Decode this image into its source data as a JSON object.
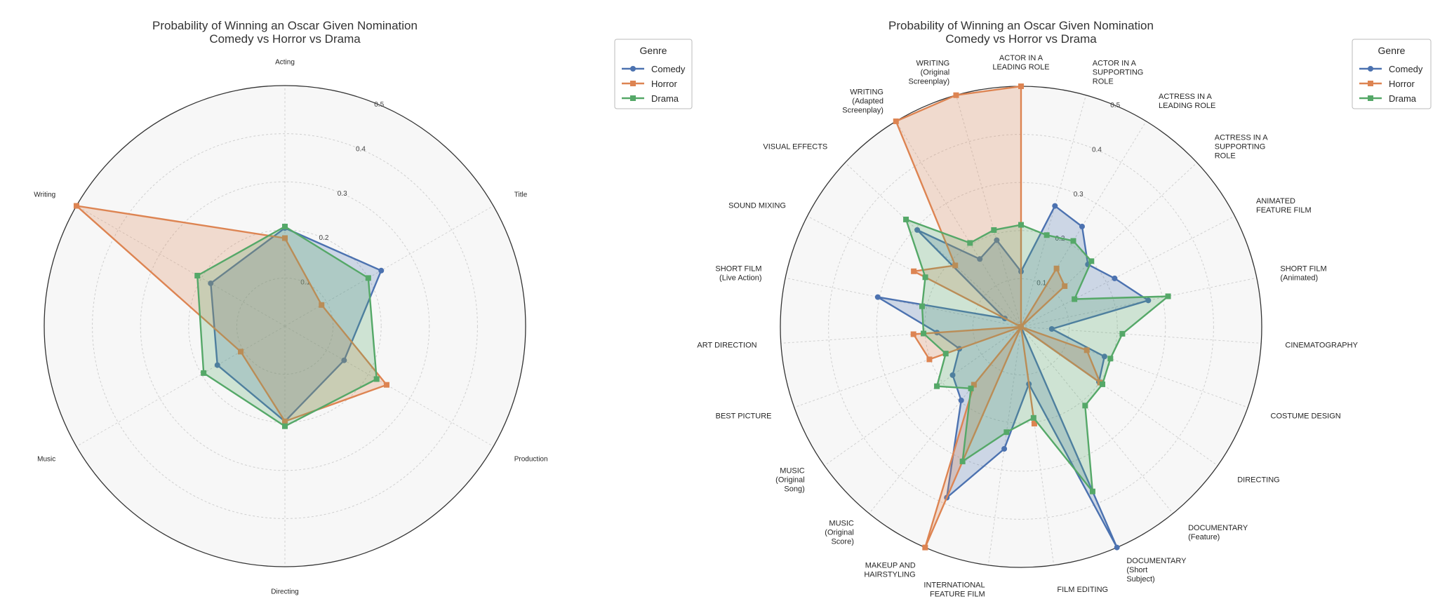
{
  "chart_data": [
    {
      "type": "radar",
      "title": [
        "Probability of Winning an Oscar Given Nomination",
        "Comedy vs Horror vs Drama"
      ],
      "categories": [
        [
          "Acting"
        ],
        [
          "Title"
        ],
        [
          "Production"
        ],
        [
          "Directing"
        ],
        [
          "Music"
        ],
        [
          "Writing"
        ]
      ],
      "rlim": [
        0,
        0.5
      ],
      "rticks": [
        "0.1",
        "0.2",
        "0.3",
        "0.4",
        "0.5"
      ],
      "grid": true,
      "legend": {
        "title": "Genre",
        "position": "upper-right"
      },
      "series": [
        {
          "name": "Comedy",
          "color": "#4c72b0",
          "marker": "circle",
          "values": [
            0.204,
            0.231,
            0.142,
            0.198,
            0.162,
            0.178
          ]
        },
        {
          "name": "Horror",
          "color": "#dd8452",
          "marker": "square",
          "values": [
            0.183,
            0.088,
            0.244,
            0.198,
            0.106,
            0.5
          ]
        },
        {
          "name": "Drama",
          "color": "#55a868",
          "marker": "square",
          "values": [
            0.207,
            0.2,
            0.22,
            0.208,
            0.195,
            0.21
          ]
        }
      ]
    },
    {
      "type": "radar",
      "title": [
        "Probability of Winning an Oscar Given Nomination",
        "Comedy vs Horror vs Drama"
      ],
      "categories": [
        [
          "ACTOR IN A",
          "LEADING ROLE"
        ],
        [
          "ACTOR IN A",
          "SUPPORTING",
          "ROLE"
        ],
        [
          "ACTRESS IN A",
          "LEADING ROLE"
        ],
        [
          "ACTRESS IN A",
          "SUPPORTING",
          "ROLE"
        ],
        [
          "ANIMATED",
          "FEATURE FILM"
        ],
        [
          "SHORT FILM",
          "(Animated)"
        ],
        [
          "CINEMATOGRAPHY"
        ],
        [
          "COSTUME DESIGN"
        ],
        [
          "DIRECTING"
        ],
        [
          "DOCUMENTARY",
          "(Feature)"
        ],
        [
          "DOCUMENTARY",
          "(Short",
          "Subject)"
        ],
        [
          "FILM EDITING"
        ],
        [
          "INTERNATIONAL",
          "FEATURE FILM"
        ],
        [
          "MAKEUP AND",
          "HAIRSTYLING"
        ],
        [
          "MUSIC",
          "(Original",
          "Score)"
        ],
        [
          "MUSIC",
          "(Original",
          "Song)"
        ],
        [
          "BEST PICTURE"
        ],
        [
          "ART DIRECTION"
        ],
        [
          "SHORT FILM",
          "(Live Action)"
        ],
        [
          "SOUND MIXING"
        ],
        [
          "VISUAL EFFECTS"
        ],
        [
          "WRITING",
          "(Adapted",
          "Screenplay)"
        ],
        [
          "WRITING",
          "(Original",
          "Screenplay)"
        ]
      ],
      "rlim": [
        0,
        0.5
      ],
      "rticks": [
        "0.1",
        "0.2",
        "0.3",
        "0.4",
        "0.5"
      ],
      "grid": true,
      "legend": {
        "title": "Genre",
        "position": "upper-right"
      },
      "series": [
        {
          "name": "Comedy",
          "color": "#4c72b0",
          "marker": "circle",
          "values": [
            0.115,
            0.261,
            0.244,
            0.19,
            0.219,
            0.27,
            0.064,
            0.184,
            0.198,
            0,
            0.5,
            0.12,
            0.256,
            0.387,
            0.197,
            0.174,
            0.136,
            0.175,
            0.304,
            0.038,
            0.295,
            0.165,
            0.187
          ]
        },
        {
          "name": "Horror",
          "color": "#dd8452",
          "marker": "square",
          "values": [
            0.5,
            0,
            0.142,
            0.124,
            0,
            0,
            0,
            0.145,
            0.201,
            0,
            0,
            0.203,
            0,
            0.5,
            0.155,
            0,
            0.202,
            0.224,
            0,
            0.251,
            0.187,
            0.5,
            0.5
          ]
        },
        {
          "name": "Drama",
          "color": "#55a868",
          "marker": "square",
          "values": [
            0.212,
            0.198,
            0.209,
            0.2,
            0.125,
            0.312,
            0.211,
            0.197,
            0.207,
            0.211,
            0.373,
            0.191,
            0.221,
            0.305,
            0.165,
            0.214,
            0.166,
            0.203,
            0.21,
            0.224,
            0.327,
            0.204,
            0.209
          ]
        }
      ]
    }
  ]
}
